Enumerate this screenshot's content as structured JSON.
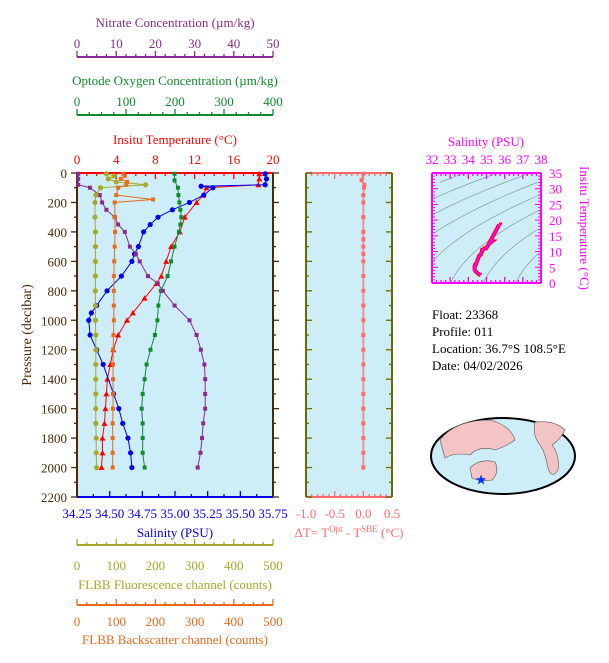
{
  "info": {
    "float": "Float:  23368",
    "profile": "Profile:  011",
    "location": "Location:  36.7°S  108.5°E",
    "date": "Date:  04/02/2026"
  },
  "colors": {
    "plot_bg": "#cdeef8",
    "temperature": "#ff0000",
    "salinity": "#0000ee",
    "oxygen": "#118a2e",
    "nitrate": "#8b2a8e",
    "fluorescence": "#a8a82a",
    "backscatter": "#e86a1a",
    "delta": "#ff6b6b",
    "ts": "#ff00ff",
    "pressure_axis": "#4a2a0a",
    "delta_frame": "#6b6b00"
  },
  "chart_data": [
    {
      "type": "line",
      "ylabel": "Pressure (decibar)",
      "ylim": [
        0,
        2200
      ],
      "yticks": [
        "0",
        "200",
        "400",
        "600",
        "800",
        "1000",
        "1200",
        "1400",
        "1600",
        "1800",
        "2000",
        "2200"
      ],
      "axes": {
        "temperature": {
          "label": "Insitu Temperature (°C)",
          "range": [
            0,
            20
          ],
          "ticks": [
            "0",
            "4",
            "8",
            "12",
            "16",
            "20"
          ]
        },
        "salinity": {
          "label": "Salinity (PSU)",
          "range": [
            34.25,
            35.75
          ],
          "ticks": [
            "34.25",
            "34.50",
            "34.75",
            "35.00",
            "35.25",
            "35.50",
            "35.75"
          ]
        },
        "oxygen": {
          "label": "Optode Oxygen Concentration (µm/kg)",
          "range": [
            0,
            400
          ],
          "ticks": [
            "0",
            "100",
            "200",
            "300",
            "400"
          ]
        },
        "nitrate": {
          "label": "Nitrate Concentration (µm/kg)",
          "range": [
            0,
            50
          ],
          "ticks": [
            "0",
            "10",
            "20",
            "30",
            "40",
            "50"
          ]
        },
        "fluorescence": {
          "label": "FLBB Fluorescence channel (counts)",
          "range": [
            0,
            500
          ],
          "ticks": [
            "0",
            "100",
            "200",
            "300",
            "400",
            "500"
          ]
        },
        "backscatter": {
          "label": "FLBB Backscatter channel (counts)",
          "range": [
            0,
            500
          ],
          "ticks": [
            "0",
            "100",
            "200",
            "300",
            "400",
            "500"
          ]
        }
      },
      "series": [
        {
          "name": "temperature",
          "marker": "triangle",
          "p": [
            5,
            40,
            80,
            100,
            150,
            200,
            300,
            400,
            500,
            600,
            700,
            750,
            850,
            950,
            1000,
            1100,
            1200,
            1300,
            1400,
            1500,
            1600,
            1700,
            1800,
            1900,
            2000
          ],
          "v": [
            18.6,
            18.6,
            18.5,
            13.2,
            12.9,
            12.2,
            11.0,
            10.5,
            9.6,
            9.1,
            8.6,
            8.1,
            6.9,
            5.7,
            5.1,
            4.2,
            3.7,
            3.4,
            3.1,
            3.0,
            2.9,
            2.8,
            2.6,
            2.6,
            2.5
          ]
        },
        {
          "name": "salinity",
          "marker": "circle",
          "p": [
            5,
            40,
            80,
            90,
            100,
            150,
            200,
            250,
            300,
            350,
            400,
            500,
            550,
            600,
            700,
            800,
            900,
            950,
            1000,
            1100,
            1200,
            1300,
            1500,
            1600,
            1700,
            1800,
            1900,
            2000
          ],
          "v": [
            35.69,
            35.7,
            35.69,
            35.2,
            35.29,
            35.22,
            35.11,
            34.98,
            34.87,
            34.81,
            34.76,
            34.72,
            34.69,
            34.67,
            34.59,
            34.48,
            34.4,
            34.36,
            34.34,
            34.35,
            34.4,
            34.45,
            34.53,
            34.57,
            34.6,
            34.64,
            34.66,
            34.67
          ]
        },
        {
          "name": "oxygen",
          "marker": "square",
          "p": [
            5,
            50,
            100,
            150,
            200,
            250,
            300,
            350,
            400,
            500,
            600,
            700,
            800,
            900,
            1000,
            1100,
            1200,
            1300,
            1400,
            1500,
            1600,
            1700,
            1800,
            1900,
            2000
          ],
          "v": [
            199,
            199,
            206,
            207,
            209,
            211,
            213,
            211,
            208,
            199,
            192,
            185,
            171,
            166,
            164,
            159,
            150,
            142,
            138,
            134,
            132,
            134,
            134,
            134,
            138
          ]
        },
        {
          "name": "nitrate",
          "marker": "square",
          "p": [
            5,
            40,
            80,
            100,
            150,
            200,
            250,
            300,
            350,
            400,
            500,
            550,
            600,
            700,
            750,
            800,
            900,
            1000,
            1100,
            1200,
            1300,
            1400,
            1500,
            1600,
            1700,
            1800,
            1900,
            2000
          ],
          "v": [
            0.3,
            0.3,
            0.3,
            3.3,
            5.8,
            6.4,
            7.5,
            9.6,
            10.5,
            12.2,
            13.5,
            15.0,
            16.0,
            18.1,
            20.6,
            21.9,
            24.9,
            28.7,
            30.5,
            31.6,
            32.5,
            32.7,
            32.7,
            32.7,
            32.2,
            31.9,
            31.5,
            30.8
          ]
        },
        {
          "name": "fluorescence",
          "marker": "circle",
          "p": [
            5,
            20,
            40,
            60,
            80,
            100,
            150,
            200,
            300,
            400,
            500,
            600,
            700,
            800,
            900,
            1000,
            1100,
            1200,
            1300,
            1400,
            1500,
            1600,
            1700,
            1800,
            1900,
            2000
          ],
          "v": [
            75,
            95,
            80,
            100,
            175,
            60,
            48,
            46,
            46,
            47,
            47,
            47,
            47,
            47,
            47,
            47,
            48,
            48,
            48,
            48,
            48,
            48,
            48,
            49,
            49,
            50
          ]
        },
        {
          "name": "backscatter",
          "marker": "square",
          "p": [
            5,
            20,
            40,
            60,
            80,
            100,
            150,
            180,
            200,
            300,
            400,
            500,
            600,
            700,
            800,
            900,
            1000,
            1100,
            1200,
            1300,
            1400,
            1500,
            1600,
            1700,
            1800,
            1900,
            2000
          ],
          "v": [
            118,
            122,
            112,
            128,
            126,
            105,
            100,
            194,
            96,
            97,
            97,
            96,
            95,
            94,
            94,
            94,
            94,
            93,
            92,
            92,
            92,
            92,
            92,
            91,
            91,
            91,
            91
          ]
        }
      ]
    },
    {
      "type": "line",
      "xlabel_parts": [
        "ΔT= T",
        "Opt",
        " - T",
        "SBE",
        " (°C)"
      ],
      "xlim": [
        -1.0,
        0.5
      ],
      "xticks": [
        "-1.0",
        "-0.5",
        "0.0",
        "0.5"
      ],
      "ylim": [
        0,
        2200
      ],
      "p": [
        5,
        50,
        80,
        100,
        150,
        200,
        300,
        400,
        450,
        500,
        550,
        600,
        700,
        800,
        900,
        1000,
        1100,
        1200,
        1300,
        1400,
        1500,
        1600,
        1700,
        1800,
        1900,
        2000
      ],
      "v": [
        0.0,
        -0.03,
        0.02,
        0.01,
        0.0,
        0.0,
        0.0,
        0.0,
        0.0,
        0.0,
        0.0,
        0.0,
        0.0,
        0.0,
        0.0,
        0.0,
        0.0,
        0.0,
        0.0,
        0.0,
        0.0,
        0.0,
        0.0,
        0.0,
        0.0,
        0.0
      ]
    },
    {
      "type": "scatter",
      "xlabel": "Salinity (PSU)",
      "ylabel": "Insitu Temperature (°C)",
      "xlim": [
        32,
        38
      ],
      "ylim": [
        0,
        35
      ],
      "xticks": [
        "32",
        "33",
        "34",
        "35",
        "36",
        "37",
        "38"
      ],
      "yticks": [
        "0",
        "5",
        "10",
        "15",
        "20",
        "25",
        "30",
        "35"
      ]
    }
  ]
}
